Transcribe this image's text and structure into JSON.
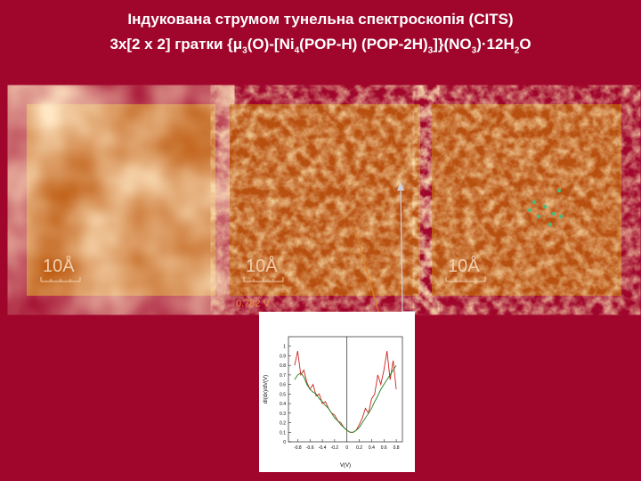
{
  "header": {
    "line1": "Індукована струмом тунельна спектроскопія (CITS)",
    "line2": [
      {
        "text": "3x[2 x 2] гратки {μ"
      },
      {
        "sub": "3"
      },
      {
        "text": "(O)-[Ni"
      },
      {
        "sub": "4"
      },
      {
        "text": "(POP-H) (POP-2H)"
      },
      {
        "sub": "3"
      },
      {
        "text": "]}(NO"
      },
      {
        "sub": "3"
      },
      {
        "text": ")·12H"
      },
      {
        "sub": "2"
      },
      {
        "text": "O"
      }
    ]
  },
  "images": [
    {
      "scale": "10Å"
    },
    {
      "scale": "10Å"
    },
    {
      "scale": "10Å"
    }
  ],
  "voltage": "0.782 V",
  "chart_data": {
    "type": "line",
    "x_label": "V(V)",
    "y_label": "dI(dx)/dV(V)",
    "x": [
      -0.85,
      -0.8,
      -0.75,
      -0.7,
      -0.65,
      -0.6,
      -0.55,
      -0.5,
      -0.45,
      -0.4,
      -0.35,
      -0.3,
      -0.25,
      -0.2,
      -0.15,
      -0.1,
      -0.05,
      0,
      0.05,
      0.1,
      0.15,
      0.2,
      0.25,
      0.3,
      0.35,
      0.4,
      0.45,
      0.5,
      0.55,
      0.6,
      0.65,
      0.7,
      0.75,
      0.8
    ],
    "series": [
      {
        "color": "#d02020",
        "values": [
          0.8,
          0.95,
          0.7,
          0.75,
          0.62,
          0.55,
          0.6,
          0.48,
          0.5,
          0.4,
          0.42,
          0.35,
          0.3,
          0.28,
          0.22,
          0.2,
          0.15,
          0.12,
          0.1,
          0.1,
          0.12,
          0.18,
          0.25,
          0.35,
          0.3,
          0.45,
          0.5,
          0.7,
          0.6,
          0.75,
          0.95,
          0.65,
          0.85,
          0.55
        ]
      },
      {
        "color": "#208020",
        "values": [
          0.65,
          0.7,
          0.72,
          0.68,
          0.6,
          0.55,
          0.52,
          0.5,
          0.45,
          0.42,
          0.38,
          0.35,
          0.3,
          0.25,
          0.22,
          0.18,
          0.15,
          0.12,
          0.1,
          0.1,
          0.12,
          0.15,
          0.2,
          0.25,
          0.3,
          0.35,
          0.42,
          0.48,
          0.55,
          0.6,
          0.65,
          0.7,
          0.75,
          0.8
        ]
      }
    ],
    "xlim": [
      -0.95,
      0.9
    ],
    "ylim": [
      0,
      1.1
    ],
    "xticks": [
      -0.8,
      -0.6,
      -0.4,
      -0.2,
      0,
      0.2,
      0.4,
      0.6,
      0.8
    ],
    "yticks": [
      0,
      0.1,
      0.2,
      0.3,
      0.4,
      0.5,
      0.6,
      0.7,
      0.8,
      0.9,
      1
    ]
  }
}
